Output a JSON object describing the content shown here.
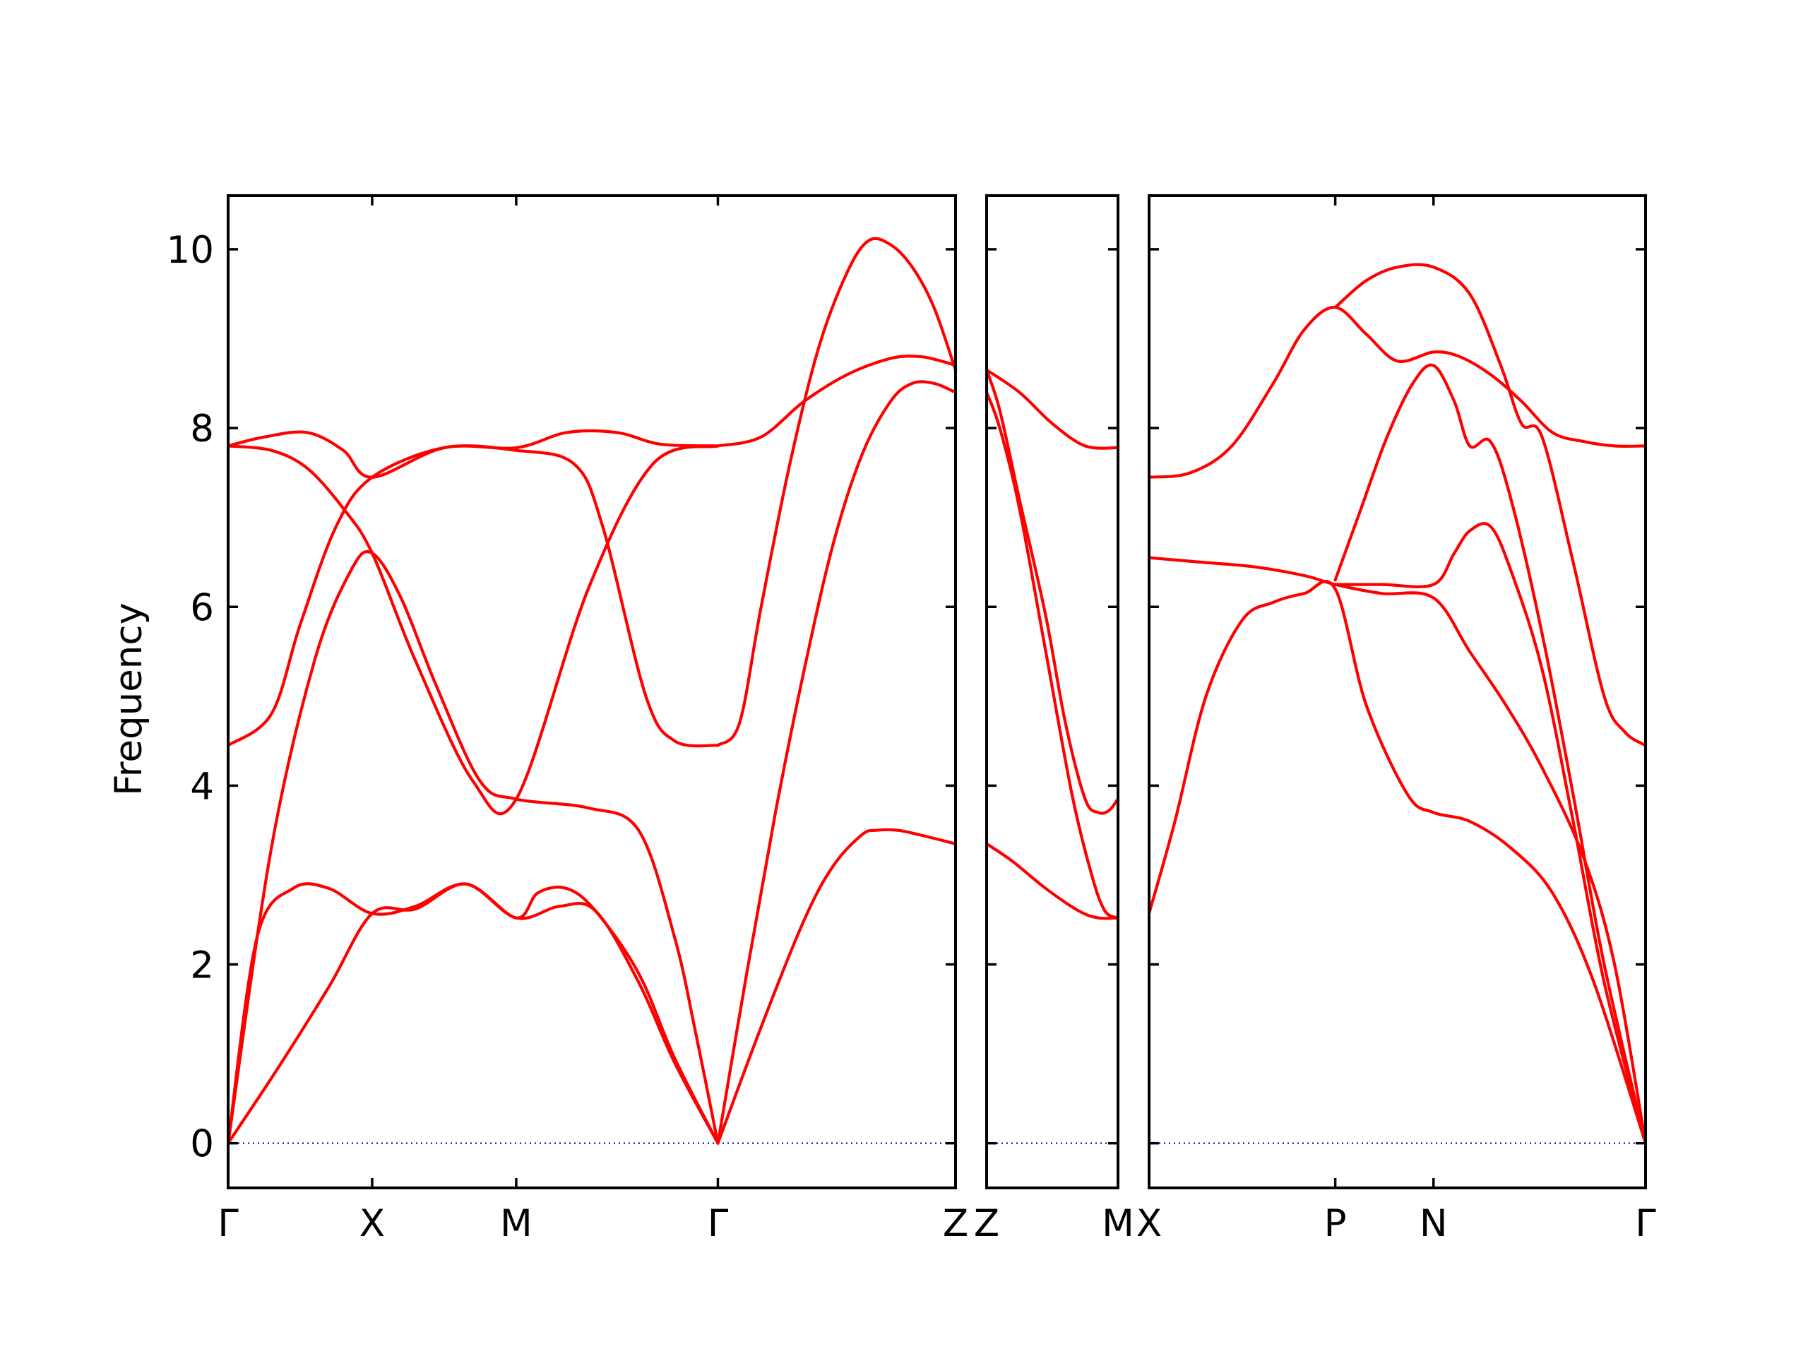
{
  "chart_data": {
    "type": "line",
    "ylabel": "Frequency",
    "ylim": [
      -0.5,
      10.6
    ],
    "yticks": [
      0,
      2,
      4,
      6,
      8,
      10
    ],
    "colors": {
      "bands": "#ff0000",
      "zero_line": "#0000cc"
    },
    "zero_line": {
      "y": 0,
      "style": "dotted"
    },
    "panels": [
      {
        "xlim": [
          0,
          5.05
        ],
        "ticks": [
          {
            "x": 0,
            "label": "Γ"
          },
          {
            "x": 1.0,
            "label": "X"
          },
          {
            "x": 2.0,
            "label": "M"
          },
          {
            "x": 3.4,
            "label": "Γ"
          },
          {
            "x": 5.05,
            "label": "Z"
          }
        ],
        "series": [
          {
            "x": [
              0,
              0.2,
              0.45,
              0.7,
              1.0,
              1.3,
              1.65,
              2.0,
              2.3,
              2.55,
              2.85,
              3.1,
              3.4
            ],
            "y": [
              0,
              2.3,
              2.85,
              2.85,
              2.57,
              2.65,
              2.9,
              2.52,
              2.65,
              2.6,
              1.8,
              0.9,
              0
            ]
          },
          {
            "x": [
              0,
              0.35,
              0.7,
              1.0,
              1.3,
              1.65,
              2.0,
              2.15,
              2.35,
              2.55,
              2.85,
              3.1,
              3.4
            ],
            "y": [
              0,
              0.85,
              1.75,
              2.57,
              2.62,
              2.9,
              2.52,
              2.8,
              2.85,
              2.6,
              1.9,
              0.95,
              0
            ]
          },
          {
            "x": [
              0,
              0.3,
              0.6,
              0.85,
              1.0,
              1.2,
              1.45,
              1.75,
              2.0,
              2.5,
              2.85,
              3.1,
              3.25,
              3.4
            ],
            "y": [
              0,
              3.3,
              5.4,
              6.4,
              6.6,
              6.1,
              5.1,
              4.05,
              3.85,
              3.75,
              3.5,
              2.3,
              1.2,
              0
            ]
          },
          {
            "x": [
              0,
              0.3,
              0.55,
              0.8,
              1.0,
              1.3,
              1.7,
              2.0,
              2.5,
              2.95,
              3.4
            ],
            "y": [
              7.8,
              7.75,
              7.55,
              7.1,
              6.6,
              5.4,
              4.05,
              3.85,
              6.2,
              7.6,
              7.8
            ]
          },
          {
            "x": [
              0,
              0.3,
              0.5,
              0.75,
              1.0,
              1.5,
              2.0,
              2.4,
              2.6,
              2.9,
              3.1,
              3.4
            ],
            "y": [
              4.45,
              4.8,
              5.8,
              6.9,
              7.45,
              7.78,
              7.75,
              7.6,
              6.9,
              5.0,
              4.5,
              4.45
            ]
          },
          {
            "x": [
              0,
              0.25,
              0.55,
              0.8,
              1.0,
              1.5,
              2.0,
              2.35,
              2.7,
              3.0,
              3.4
            ],
            "y": [
              7.8,
              7.9,
              7.95,
              7.75,
              7.45,
              7.78,
              7.78,
              7.95,
              7.95,
              7.82,
              7.8
            ]
          },
          {
            "x": [
              3.4,
              3.7,
              4.0,
              4.2,
              4.4,
              4.5,
              4.65,
              4.8,
              5.05
            ],
            "y": [
              0,
              1.3,
              2.5,
              3.1,
              3.45,
              3.5,
              3.5,
              3.45,
              3.35
            ]
          },
          {
            "x": [
              3.4,
              3.6,
              3.8,
              4.0,
              4.2,
              4.4,
              4.6,
              4.75,
              4.9,
              5.05
            ],
            "y": [
              0,
              1.9,
              3.7,
              5.3,
              6.7,
              7.7,
              8.3,
              8.5,
              8.5,
              8.4
            ]
          },
          {
            "x": [
              3.4,
              3.55,
              3.7,
              3.9,
              4.1,
              4.3,
              4.45,
              4.6,
              4.75,
              4.9,
              5.05
            ],
            "y": [
              4.45,
              4.7,
              6.0,
              7.6,
              8.9,
              9.75,
              10.1,
              10.05,
              9.8,
              9.35,
              8.65
            ]
          },
          {
            "x": [
              3.4,
              3.7,
              4.0,
              4.3,
              4.6,
              4.8,
              4.95,
              5.05
            ],
            "y": [
              7.8,
              7.9,
              8.3,
              8.6,
              8.78,
              8.8,
              8.75,
              8.7
            ]
          }
        ]
      },
      {
        "xlim": [
          0,
          1
        ],
        "ticks": [
          {
            "x": 0,
            "label": "Z"
          },
          {
            "x": 1,
            "label": "M"
          }
        ],
        "series": [
          {
            "x": [
              0,
              0.2,
              0.45,
              0.7,
              0.85,
              1.0
            ],
            "y": [
              3.35,
              3.15,
              2.85,
              2.6,
              2.52,
              2.52
            ]
          },
          {
            "x": [
              0,
              0.1,
              0.25,
              0.45,
              0.65,
              0.8,
              0.9,
              1.0
            ],
            "y": [
              8.4,
              8.0,
              7.1,
              5.5,
              3.9,
              3.0,
              2.6,
              2.52
            ]
          },
          {
            "x": [
              0,
              0.1,
              0.25,
              0.45,
              0.6,
              0.75,
              0.85,
              0.93,
              1.0
            ],
            "y": [
              8.65,
              8.2,
              7.2,
              5.9,
              4.7,
              3.85,
              3.7,
              3.72,
              3.85
            ]
          },
          {
            "x": [
              0,
              0.25,
              0.5,
              0.75,
              1.0
            ],
            "y": [
              8.65,
              8.4,
              8.05,
              7.8,
              7.78
            ]
          }
        ]
      },
      {
        "xlim": [
          0,
          4.8
        ],
        "ticks": [
          {
            "x": 0,
            "label": "X"
          },
          {
            "x": 1.8,
            "label": "P"
          },
          {
            "x": 2.75,
            "label": "N"
          },
          {
            "x": 4.8,
            "label": "Γ"
          }
        ],
        "series": [
          {
            "x": [
              0,
              0.25,
              0.55,
              0.9,
              1.2,
              1.5,
              1.8,
              2.1,
              2.5,
              2.75,
              3.1,
              3.5,
              3.9,
              4.3,
              4.8
            ],
            "y": [
              2.57,
              3.6,
              5.0,
              5.85,
              6.05,
              6.15,
              6.2,
              4.9,
              3.9,
              3.7,
              3.6,
              3.3,
              2.8,
              1.8,
              0
            ]
          },
          {
            "x": [
              0,
              0.5,
              1.0,
              1.5,
              1.8,
              2.25,
              2.75,
              3.1,
              3.45,
              3.8,
              4.2,
              4.5,
              4.8
            ],
            "y": [
              6.55,
              6.5,
              6.45,
              6.35,
              6.25,
              6.15,
              6.1,
              5.5,
              4.9,
              4.2,
              3.2,
              2.0,
              0
            ]
          },
          {
            "x": [
              1.8,
              2.05,
              2.3,
              2.55,
              2.75,
              2.95,
              3.1,
              3.3,
              3.5,
              3.8,
              4.1,
              4.4,
              4.8
            ],
            "y": [
              6.3,
              7.1,
              7.9,
              8.5,
              8.7,
              8.3,
              7.8,
              7.85,
              7.2,
              5.7,
              3.9,
              2.0,
              0
            ]
          },
          {
            "x": [
              1.8,
              2.25,
              2.75,
              2.95,
              3.1,
              3.3,
              3.5,
              3.8,
              4.1,
              4.4,
              4.8
            ],
            "y": [
              6.25,
              6.25,
              6.25,
              6.6,
              6.85,
              6.9,
              6.4,
              5.3,
              3.6,
              1.8,
              0
            ]
          },
          {
            "x": [
              0,
              0.4,
              0.8,
              1.2,
              1.5,
              1.8,
              2.1,
              2.4,
              2.75,
              3.0,
              3.3,
              3.6,
              3.9,
              4.2,
              4.5,
              4.8
            ],
            "y": [
              7.45,
              7.5,
              7.8,
              8.5,
              9.1,
              9.35,
              9.05,
              8.75,
              8.85,
              8.8,
              8.6,
              8.3,
              7.95,
              7.85,
              7.8,
              7.8
            ]
          },
          {
            "x": [
              1.8,
              2.1,
              2.4,
              2.75,
              3.1,
              3.4,
              3.6,
              3.8,
              4.1,
              4.4,
              4.6,
              4.8
            ],
            "y": [
              9.35,
              9.65,
              9.8,
              9.8,
              9.5,
              8.7,
              8.05,
              7.9,
              6.5,
              5.0,
              4.6,
              4.45
            ]
          }
        ]
      }
    ]
  }
}
